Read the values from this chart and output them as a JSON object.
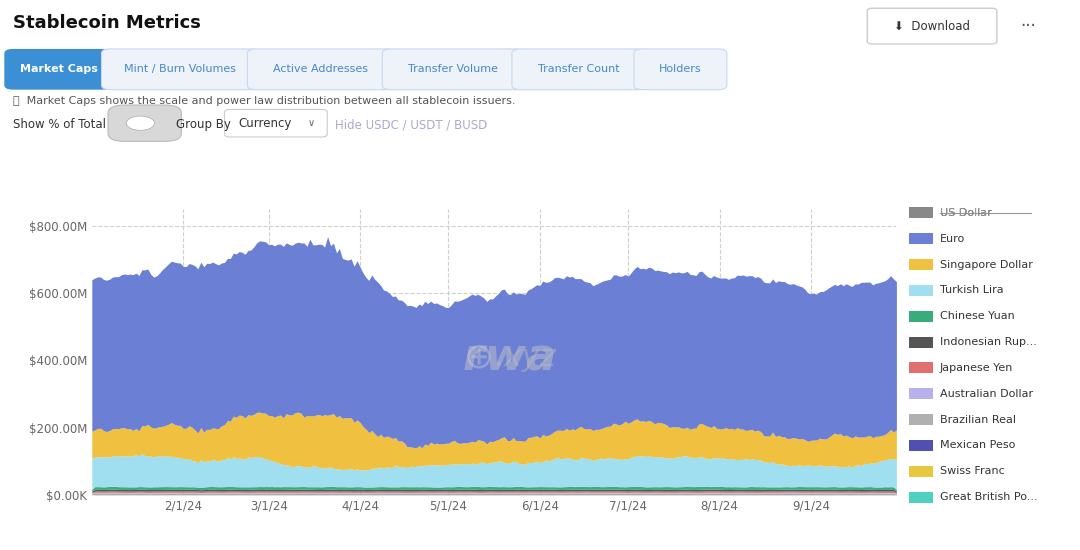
{
  "title": "Stablecoin Metrics",
  "background_color": "#ffffff",
  "plot_bg_color": "#ffffff",
  "grid_color": "#d0d0d0",
  "ylabel_ticks": [
    "$0.00K",
    "$200.00M",
    "$400.00M",
    "$600.00M",
    "$800.00M"
  ],
  "ytick_values": [
    0,
    200000000,
    400000000,
    600000000,
    800000000
  ],
  "ylim": [
    0,
    850000000
  ],
  "xtick_labels": [
    "2/1/24",
    "3/1/24",
    "4/1/24",
    "5/1/24",
    "6/1/24",
    "7/1/24",
    "8/1/24",
    "9/1/24"
  ],
  "n_points": 274,
  "subtitle_buttons": [
    "Market Caps",
    "Mint / Burn Volumes",
    "Active Addresses",
    "Transfer Volume",
    "Transfer Count",
    "Holders"
  ],
  "info_text": "Market Caps shows the scale and power law distribution between all stablecoin issuers.",
  "show_pct_label": "Show % of Total",
  "group_by_label": "Group By",
  "group_by_value": "Currency",
  "hide_label": "Hide USDC / USDT / BUSD",
  "legend_entries": [
    {
      "label": "US Dollar",
      "color": "#888888",
      "strikethrough": true
    },
    {
      "label": "Euro",
      "color": "#6b7fd4",
      "strikethrough": false
    },
    {
      "label": "Singapore Dollar",
      "color": "#f0c040",
      "strikethrough": false
    },
    {
      "label": "Turkish Lira",
      "color": "#a0dff0",
      "strikethrough": false
    },
    {
      "label": "Chinese Yuan",
      "color": "#3aab7a",
      "strikethrough": false
    },
    {
      "label": "Indonesian Rup...",
      "color": "#555555",
      "strikethrough": false
    },
    {
      "label": "Japanese Yen",
      "color": "#e07070",
      "strikethrough": false
    },
    {
      "label": "Australian Dollar",
      "color": "#b8b0e8",
      "strikethrough": false
    },
    {
      "label": "Brazilian Real",
      "color": "#b0b0b0",
      "strikethrough": false
    },
    {
      "label": "Mexican Peso",
      "color": "#5050b0",
      "strikethrough": false
    },
    {
      "label": "Swiss Franc",
      "color": "#e8c840",
      "strikethrough": false
    },
    {
      "label": "Great British Po...",
      "color": "#50d0c0",
      "strikethrough": false
    }
  ]
}
